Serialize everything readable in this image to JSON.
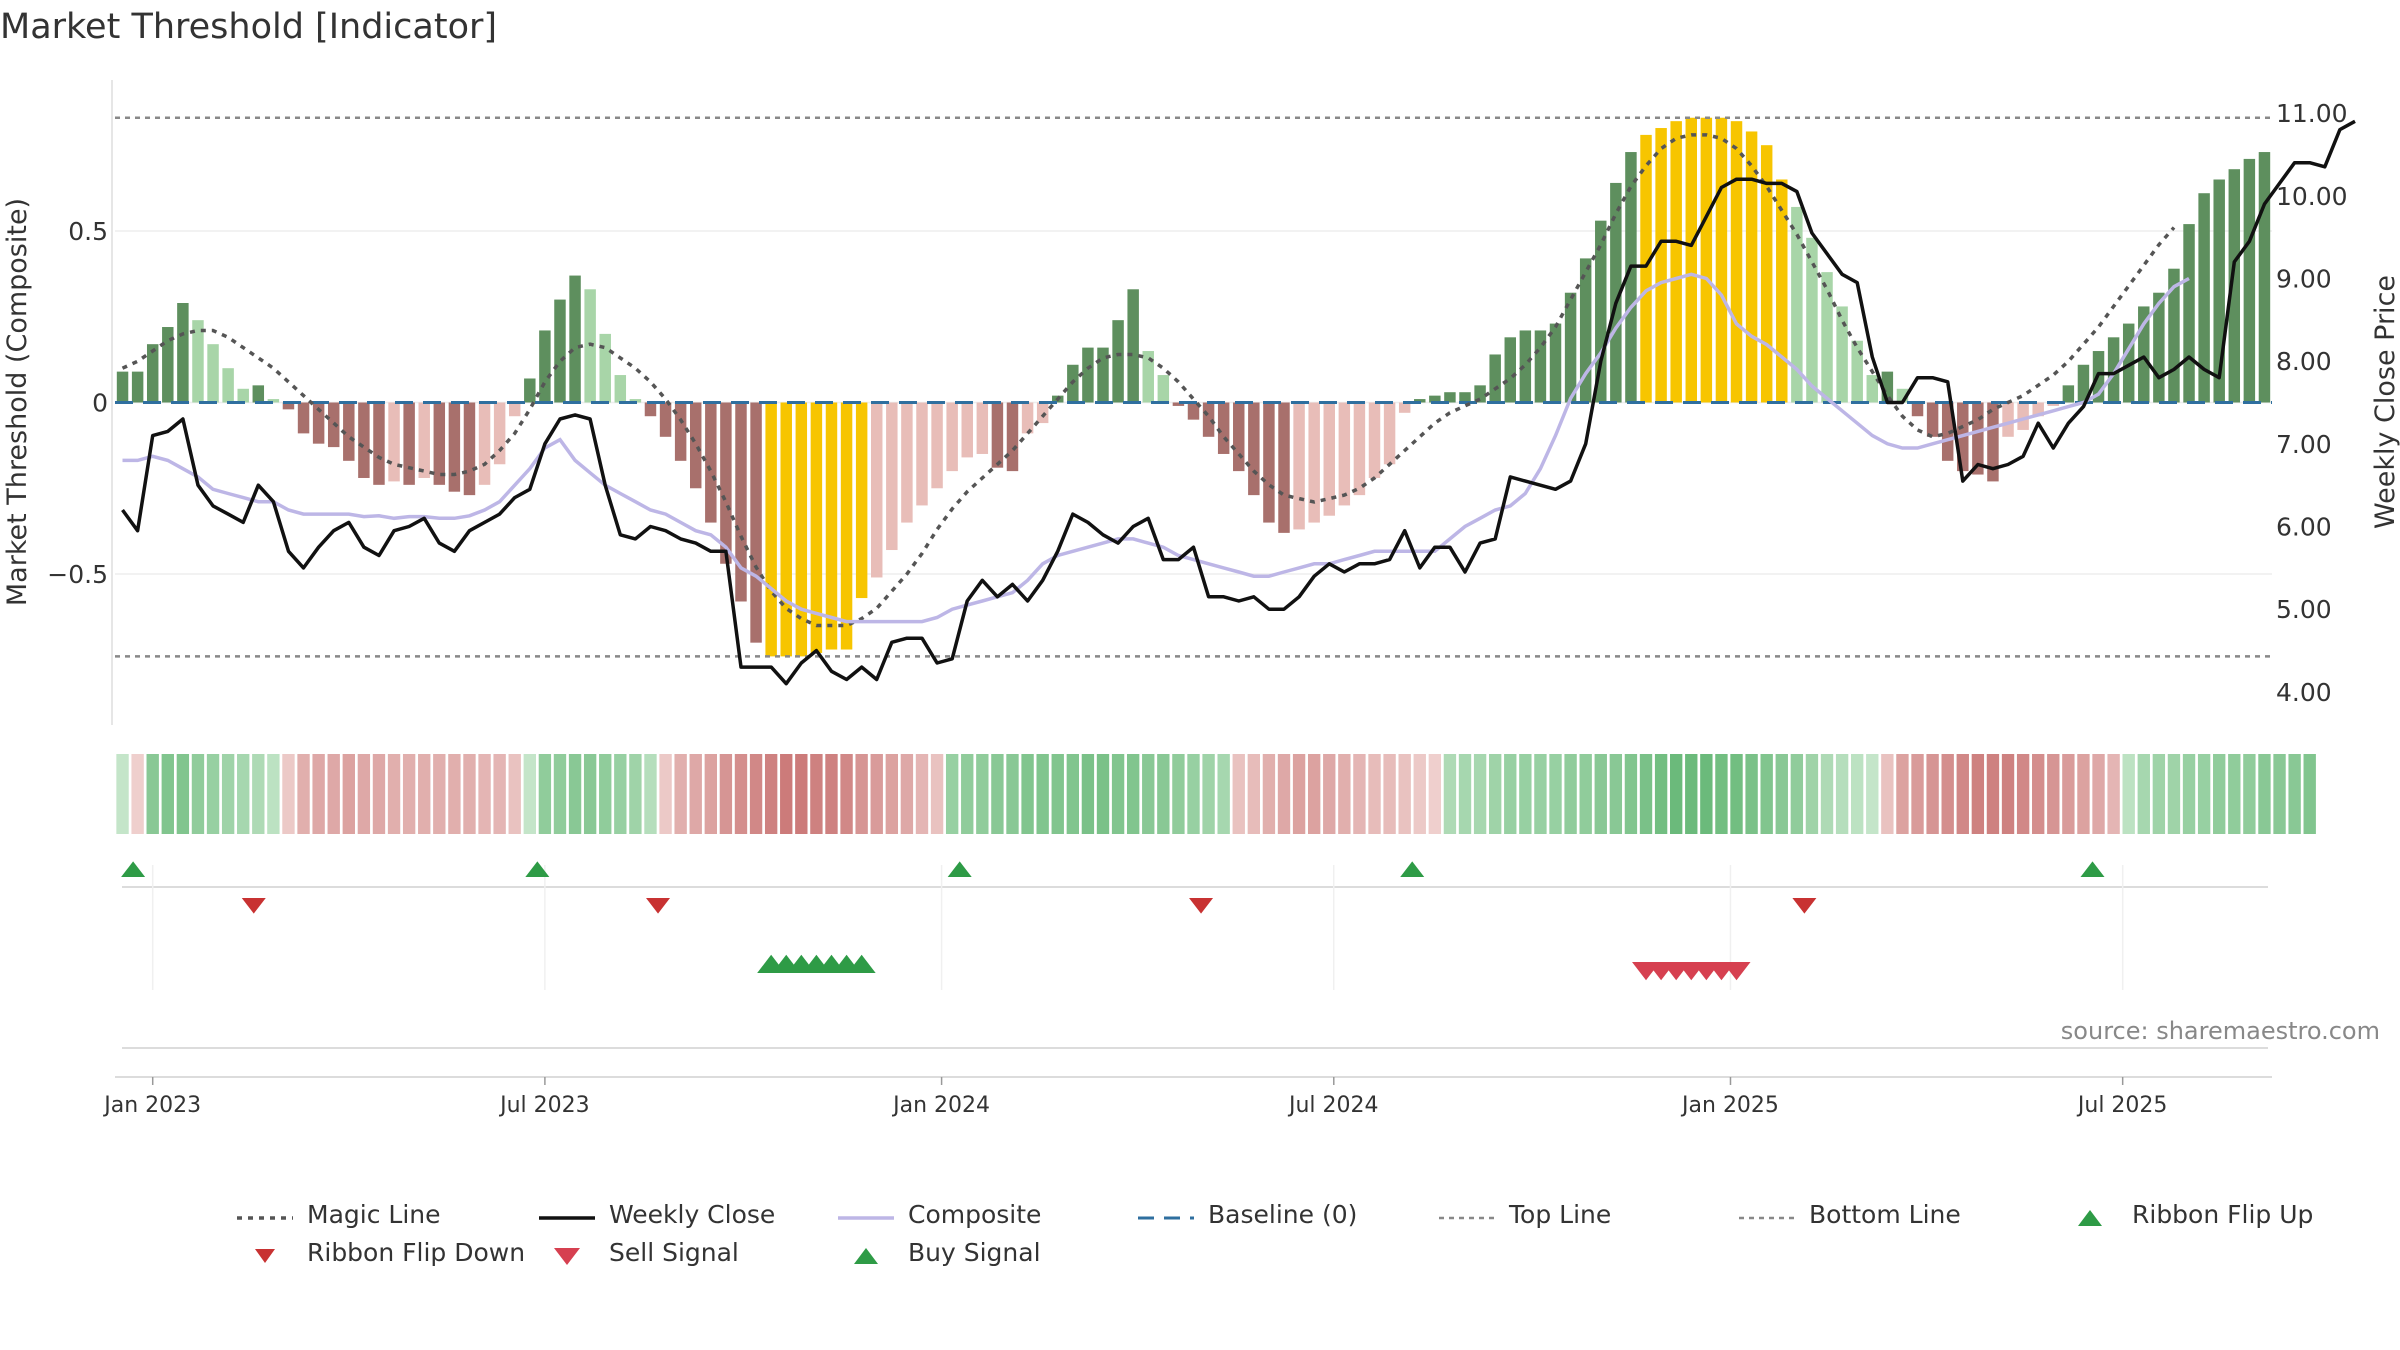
{
  "title": "Market Threshold [Indicator]",
  "source": "source: sharemaestro.com",
  "colors": {
    "bar_strong_up": "#5e8f5e",
    "bar_weak_up": "#a8d5a8",
    "bar_strong_down": "#a8706c",
    "bar_weak_down": "#e8bdb8",
    "bar_extreme": "#f7c500",
    "close": "#111111",
    "composite": "#bdb6e6",
    "magic": "#555555",
    "baseline": "#2f6f9f",
    "buy": "#2e9b46",
    "sell": "#d64050",
    "flip_up": "#2e9b46",
    "flip_down": "#c83232"
  },
  "chart_data": {
    "type": "bar+line",
    "title": "Market Threshold [Indicator]",
    "ylabel_left": "Market Threshold (Composite)",
    "ylabel_right": "Weekly Close Price",
    "ylim_left": [
      -0.94,
      0.94
    ],
    "ylim_right": [
      3.6,
      11.4
    ],
    "left_ticks": [
      {
        "v": 0.5,
        "label": "0.5"
      },
      {
        "v": 0,
        "label": "0"
      },
      {
        "v": -0.5,
        "label": "−0.5"
      }
    ],
    "right_ticks": [
      {
        "v": 11,
        "label": "11.00"
      },
      {
        "v": 10,
        "label": "10.00"
      },
      {
        "v": 9,
        "label": "9.00"
      },
      {
        "v": 8,
        "label": "8.00"
      },
      {
        "v": 7,
        "label": "7.00"
      },
      {
        "v": 6,
        "label": "6.00"
      },
      {
        "v": 5,
        "label": "5.00"
      },
      {
        "v": 4,
        "label": "4.00"
      }
    ],
    "top_line": 0.83,
    "bottom_line": -0.74,
    "start_date": "2022-12-20",
    "x_ticks": [
      {
        "label": "Jan 2023",
        "week": 2
      },
      {
        "label": "Jul 2023",
        "week": 28
      },
      {
        "label": "Jan 2024",
        "week": 54.3
      },
      {
        "label": "Jul 2024",
        "week": 80.3
      },
      {
        "label": "Jan 2025",
        "week": 106.6
      },
      {
        "label": "Jul 2025",
        "week": 132.6
      }
    ],
    "composite_bars": [
      0.09,
      0.09,
      0.17,
      0.22,
      0.29,
      0.24,
      0.17,
      0.1,
      0.04,
      0.05,
      0.01,
      -0.02,
      -0.09,
      -0.12,
      -0.13,
      -0.17,
      -0.22,
      -0.24,
      -0.23,
      -0.24,
      -0.22,
      -0.24,
      -0.26,
      -0.27,
      -0.24,
      -0.18,
      -0.04,
      0.07,
      0.21,
      0.3,
      0.37,
      0.33,
      0.2,
      0.08,
      0.01,
      -0.04,
      -0.1,
      -0.17,
      -0.25,
      -0.35,
      -0.47,
      -0.58,
      -0.7,
      -0.74,
      -0.74,
      -0.74,
      -0.73,
      -0.72,
      -0.72,
      -0.57,
      -0.51,
      -0.43,
      -0.35,
      -0.3,
      -0.25,
      -0.2,
      -0.16,
      -0.15,
      -0.19,
      -0.2,
      -0.09,
      -0.06,
      0.02,
      0.11,
      0.16,
      0.16,
      0.24,
      0.33,
      0.15,
      0.08,
      -0.01,
      -0.05,
      -0.1,
      -0.15,
      -0.2,
      -0.27,
      -0.35,
      -0.38,
      -0.37,
      -0.35,
      -0.33,
      -0.3,
      -0.27,
      -0.22,
      -0.18,
      -0.03,
      0.01,
      0.02,
      0.03,
      0.03,
      0.05,
      0.14,
      0.19,
      0.21,
      0.21,
      0.23,
      0.32,
      0.42,
      0.53,
      0.64,
      0.73,
      0.78,
      0.8,
      0.82,
      0.83,
      0.83,
      0.83,
      0.82,
      0.79,
      0.75,
      0.65,
      0.57,
      0.48,
      0.38,
      0.28,
      0.18,
      0.08,
      0.09,
      0.04,
      -0.04,
      -0.1,
      -0.17,
      -0.2,
      -0.21,
      -0.23,
      -0.1,
      -0.08,
      -0.04,
      -0.01,
      0.05,
      0.11,
      0.15,
      0.19,
      0.23,
      0.28,
      0.32,
      0.39,
      0.52,
      0.61,
      0.65,
      0.68,
      0.71,
      0.73
    ],
    "extreme_weeks": [
      [
        43,
        49
      ],
      [
        101,
        110
      ]
    ],
    "weekly_close": [
      6.2,
      5.95,
      7.1,
      7.15,
      7.3,
      6.5,
      6.25,
      6.15,
      6.05,
      6.5,
      6.3,
      5.7,
      5.5,
      5.75,
      5.95,
      6.05,
      5.75,
      5.65,
      5.95,
      6.0,
      6.1,
      5.8,
      5.7,
      5.95,
      6.05,
      6.15,
      6.35,
      6.45,
      7.0,
      7.3,
      7.35,
      7.3,
      6.5,
      5.9,
      5.85,
      6.0,
      5.95,
      5.85,
      5.8,
      5.7,
      5.7,
      4.3,
      4.3,
      4.3,
      4.1,
      4.35,
      4.5,
      4.25,
      4.15,
      4.3,
      4.15,
      4.6,
      4.65,
      4.65,
      4.35,
      4.4,
      5.1,
      5.35,
      5.15,
      5.3,
      5.1,
      5.35,
      5.7,
      6.15,
      6.05,
      5.9,
      5.8,
      6.0,
      6.1,
      5.6,
      5.6,
      5.75,
      5.15,
      5.15,
      5.1,
      5.15,
      5.0,
      5.0,
      5.15,
      5.4,
      5.55,
      5.45,
      5.55,
      5.55,
      5.6,
      5.95,
      5.5,
      5.75,
      5.75,
      5.45,
      5.8,
      5.85,
      6.6,
      6.55,
      6.5,
      6.45,
      6.55,
      7.0,
      8.0,
      8.7,
      9.15,
      9.15,
      9.45,
      9.45,
      9.4,
      9.75,
      10.1,
      10.2,
      10.2,
      10.15,
      10.15,
      10.05,
      9.55,
      9.3,
      9.05,
      8.95,
      8.05,
      7.5,
      7.5,
      7.8,
      7.8,
      7.75,
      6.55,
      6.75,
      6.7,
      6.75,
      6.85,
      7.25,
      6.95,
      7.25,
      7.45,
      7.85,
      7.85,
      7.95,
      8.05,
      7.8,
      7.9,
      8.05,
      7.9,
      7.8,
      9.2,
      9.45,
      9.9,
      10.15,
      10.4,
      10.4,
      10.35,
      10.8,
      10.9
    ],
    "composite_line": [
      6.8,
      6.8,
      6.85,
      6.8,
      6.7,
      6.6,
      6.45,
      6.4,
      6.35,
      6.3,
      6.3,
      6.2,
      6.15,
      6.15,
      6.15,
      6.15,
      6.12,
      6.13,
      6.1,
      6.12,
      6.12,
      6.1,
      6.1,
      6.13,
      6.2,
      6.3,
      6.5,
      6.7,
      6.95,
      7.05,
      6.8,
      6.65,
      6.5,
      6.4,
      6.3,
      6.2,
      6.15,
      6.05,
      5.95,
      5.9,
      5.75,
      5.5,
      5.4,
      5.25,
      5.1,
      5.0,
      4.95,
      4.9,
      4.85,
      4.85,
      4.85,
      4.85,
      4.85,
      4.85,
      4.9,
      5.0,
      5.05,
      5.1,
      5.15,
      5.2,
      5.35,
      5.55,
      5.65,
      5.7,
      5.75,
      5.8,
      5.85,
      5.85,
      5.8,
      5.75,
      5.65,
      5.6,
      5.55,
      5.5,
      5.45,
      5.4,
      5.4,
      5.45,
      5.5,
      5.55,
      5.55,
      5.6,
      5.65,
      5.7,
      5.7,
      5.7,
      5.7,
      5.7,
      5.85,
      6.0,
      6.1,
      6.2,
      6.25,
      6.4,
      6.7,
      7.1,
      7.55,
      7.85,
      8.1,
      8.4,
      8.65,
      8.85,
      8.95,
      9.0,
      9.05,
      9.0,
      8.8,
      8.45,
      8.3,
      8.2,
      8.05,
      7.9,
      7.7,
      7.55,
      7.4,
      7.25,
      7.1,
      7.0,
      6.95,
      6.95,
      7.0,
      7.05,
      7.1,
      7.15,
      7.2,
      7.25,
      7.3,
      7.35,
      7.4,
      7.45,
      7.5,
      7.6,
      7.85,
      8.15,
      8.45,
      8.7,
      8.9,
      9.0
    ],
    "magic_line": [
      0.1,
      0.12,
      0.15,
      0.18,
      0.2,
      0.21,
      0.21,
      0.19,
      0.16,
      0.13,
      0.1,
      0.06,
      0.02,
      -0.02,
      -0.06,
      -0.1,
      -0.13,
      -0.16,
      -0.18,
      -0.19,
      -0.2,
      -0.21,
      -0.21,
      -0.2,
      -0.18,
      -0.14,
      -0.09,
      -0.02,
      0.06,
      0.12,
      0.16,
      0.17,
      0.16,
      0.13,
      0.1,
      0.06,
      0.01,
      -0.05,
      -0.12,
      -0.2,
      -0.29,
      -0.39,
      -0.48,
      -0.55,
      -0.6,
      -0.63,
      -0.65,
      -0.65,
      -0.65,
      -0.63,
      -0.6,
      -0.55,
      -0.5,
      -0.44,
      -0.37,
      -0.31,
      -0.26,
      -0.22,
      -0.18,
      -0.14,
      -0.09,
      -0.04,
      0.01,
      0.06,
      0.1,
      0.13,
      0.14,
      0.14,
      0.13,
      0.1,
      0.06,
      0.01,
      -0.04,
      -0.1,
      -0.15,
      -0.2,
      -0.24,
      -0.27,
      -0.28,
      -0.29,
      -0.28,
      -0.27,
      -0.25,
      -0.22,
      -0.18,
      -0.14,
      -0.1,
      -0.06,
      -0.03,
      -0.01,
      0.01,
      0.04,
      0.07,
      0.11,
      0.16,
      0.22,
      0.3,
      0.38,
      0.46,
      0.55,
      0.63,
      0.69,
      0.74,
      0.77,
      0.78,
      0.78,
      0.77,
      0.74,
      0.69,
      0.63,
      0.56,
      0.49,
      0.41,
      0.33,
      0.24,
      0.16,
      0.09,
      0.02,
      -0.04,
      -0.08,
      -0.1,
      -0.09,
      -0.07,
      -0.05,
      -0.02,
      0.0,
      0.02,
      0.05,
      0.08,
      0.12,
      0.17,
      0.22,
      0.28,
      0.34,
      0.4,
      0.46,
      0.51
    ],
    "ribbon": [
      0.15,
      -0.1,
      0.55,
      0.6,
      0.6,
      0.5,
      0.45,
      0.4,
      0.35,
      0.3,
      0.2,
      -0.15,
      -0.35,
      -0.4,
      -0.4,
      -0.45,
      -0.4,
      -0.4,
      -0.35,
      -0.35,
      -0.35,
      -0.35,
      -0.35,
      -0.35,
      -0.3,
      -0.3,
      -0.2,
      0.15,
      0.5,
      0.5,
      0.55,
      0.55,
      0.5,
      0.45,
      0.4,
      0.25,
      -0.15,
      -0.35,
      -0.4,
      -0.45,
      -0.55,
      -0.6,
      -0.65,
      -0.7,
      -0.75,
      -0.75,
      -0.7,
      -0.7,
      -0.65,
      -0.55,
      -0.5,
      -0.45,
      -0.4,
      -0.3,
      -0.2,
      0.45,
      0.5,
      0.5,
      0.55,
      0.55,
      0.6,
      0.6,
      0.6,
      0.6,
      0.65,
      0.65,
      0.6,
      0.6,
      0.55,
      0.55,
      0.5,
      0.45,
      0.4,
      0.35,
      -0.2,
      -0.25,
      -0.35,
      -0.4,
      -0.45,
      -0.45,
      -0.4,
      -0.35,
      -0.3,
      -0.25,
      -0.25,
      -0.2,
      -0.15,
      -0.1,
      0.3,
      0.35,
      0.35,
      0.4,
      0.45,
      0.45,
      0.45,
      0.45,
      0.5,
      0.5,
      0.55,
      0.55,
      0.6,
      0.65,
      0.7,
      0.75,
      0.75,
      0.75,
      0.7,
      0.7,
      0.65,
      0.6,
      0.55,
      0.5,
      0.4,
      0.3,
      0.25,
      0.2,
      0.15,
      -0.2,
      -0.45,
      -0.5,
      -0.55,
      -0.6,
      -0.65,
      -0.7,
      -0.7,
      -0.7,
      -0.65,
      -0.6,
      -0.55,
      -0.5,
      -0.45,
      -0.4,
      -0.3,
      0.2,
      0.35,
      0.4,
      0.4,
      0.45,
      0.45,
      0.5,
      0.5,
      0.5,
      0.55,
      0.55,
      0.55,
      0.6
    ],
    "flip_up_weeks": [
      0.7,
      27.5,
      55.5,
      85.5,
      130.6
    ],
    "flip_down_weeks": [
      8.7,
      35.5,
      71.5,
      111.5
    ],
    "buy_signal_weeks": [
      43,
      44,
      45,
      46,
      47,
      48,
      49
    ],
    "sell_signal_weeks": [
      101,
      102,
      103,
      104,
      105,
      106,
      107
    ]
  },
  "legend": [
    {
      "label": "Magic Line",
      "style": "dotted-dark"
    },
    {
      "label": "Weekly Close",
      "style": "solid-black"
    },
    {
      "label": "Composite",
      "style": "solid-lavender"
    },
    {
      "label": "Baseline (0)",
      "style": "dashed-blue"
    },
    {
      "label": "Top Line",
      "style": "dotted-grey"
    },
    {
      "label": "Bottom Line",
      "style": "dotted-grey"
    },
    {
      "label": "Ribbon Flip Up",
      "style": "triangle-up-green"
    },
    {
      "label": "Ribbon Flip Down",
      "style": "triangle-down-red"
    },
    {
      "label": "Sell Signal",
      "style": "triangle-down-pink"
    },
    {
      "label": "Buy Signal",
      "style": "triangle-up-green"
    }
  ]
}
